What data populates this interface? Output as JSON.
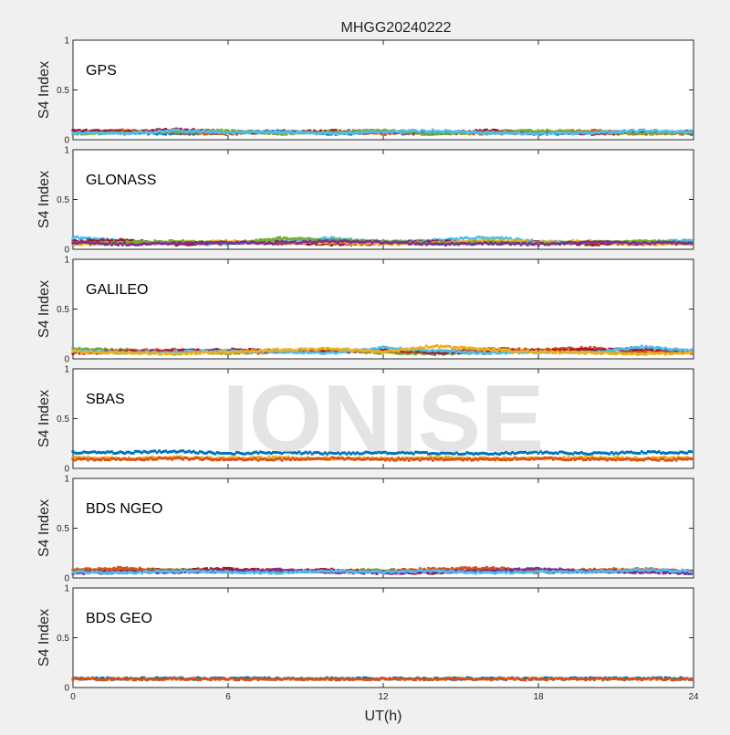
{
  "figure": {
    "title": "MHGG20240222",
    "xlabel": "UT(h)",
    "ylabel": "S4 Index",
    "watermark": "IONISE",
    "background": "#f0f0f0"
  },
  "chart_data": {
    "type": "scatter",
    "title": "MHGG20240222",
    "xlabel": "UT(h)",
    "ylabel": "S4 Index",
    "xlim": [
      0,
      24
    ],
    "xticks": [
      "0",
      "6",
      "12",
      "18",
      "24"
    ],
    "ylim": [
      0,
      1
    ],
    "yticks": [
      "0",
      "0.5",
      "1"
    ],
    "grid": false,
    "series_colors": [
      "#0072bd",
      "#d95319",
      "#edb120",
      "#7e2f8e",
      "#77ac30",
      "#4dbeee",
      "#a2142f"
    ],
    "panels": [
      {
        "label": "GPS",
        "series": [
          {
            "color": "#0072bd",
            "x": [
              0,
              2,
              4,
              6,
              8,
              10,
              12,
              14,
              16,
              18,
              20,
              22,
              24
            ],
            "values": [
              0.08,
              0.07,
              0.06,
              0.07,
              0.09,
              0.06,
              0.07,
              0.06,
              0.08,
              0.06,
              0.07,
              0.08,
              0.06
            ]
          },
          {
            "color": "#d95319",
            "x": [
              0,
              2,
              4,
              6,
              8,
              10,
              12,
              14,
              16,
              18,
              20,
              22,
              24
            ],
            "values": [
              0.07,
              0.09,
              0.07,
              0.06,
              0.08,
              0.07,
              0.06,
              0.08,
              0.06,
              0.07,
              0.09,
              0.06,
              0.07
            ]
          },
          {
            "color": "#a2142f",
            "x": [
              0,
              2,
              4,
              6,
              8,
              10,
              12,
              14,
              16,
              18,
              20,
              22,
              24
            ],
            "values": [
              0.09,
              0.08,
              0.1,
              0.08,
              0.07,
              0.09,
              0.08,
              0.07,
              0.09,
              0.08,
              0.06,
              0.07,
              0.08
            ]
          },
          {
            "color": "#77ac30",
            "x": [
              0,
              2,
              4,
              6,
              8,
              10,
              12,
              14,
              16,
              18,
              20,
              22,
              24
            ],
            "values": [
              0.06,
              0.07,
              0.08,
              0.09,
              0.06,
              0.08,
              0.09,
              0.06,
              0.07,
              0.09,
              0.08,
              0.06,
              0.07
            ]
          },
          {
            "color": "#4dbeee",
            "x": [
              0,
              2,
              4,
              6,
              8,
              10,
              12,
              14,
              16,
              18,
              20,
              22,
              24
            ],
            "values": [
              0.07,
              0.06,
              0.09,
              0.07,
              0.08,
              0.06,
              0.08,
              0.09,
              0.07,
              0.06,
              0.07,
              0.09,
              0.08
            ]
          }
        ]
      },
      {
        "label": "GLONASS",
        "series": [
          {
            "color": "#4dbeee",
            "x": [
              0,
              2,
              4,
              6,
              8,
              10,
              12,
              14,
              16,
              18,
              20,
              22,
              24
            ],
            "values": [
              0.12,
              0.08,
              0.06,
              0.05,
              0.09,
              0.11,
              0.07,
              0.09,
              0.12,
              0.08,
              0.06,
              0.07,
              0.09
            ]
          },
          {
            "color": "#a2142f",
            "x": [
              0,
              2,
              4,
              6,
              8,
              10,
              12,
              14,
              16,
              18,
              20,
              22,
              24
            ],
            "values": [
              0.08,
              0.09,
              0.05,
              0.06,
              0.07,
              0.05,
              0.06,
              0.08,
              0.06,
              0.07,
              0.05,
              0.06,
              0.06
            ]
          },
          {
            "color": "#edb120",
            "x": [
              0,
              2,
              4,
              6,
              8,
              10,
              12,
              14,
              16,
              18,
              20,
              22,
              24
            ],
            "values": [
              0.05,
              0.06,
              0.07,
              0.08,
              0.06,
              0.07,
              0.05,
              0.06,
              0.09,
              0.07,
              0.08,
              0.05,
              0.06
            ]
          },
          {
            "color": "#77ac30",
            "x": [
              0,
              2,
              4,
              6,
              8,
              10,
              12,
              14,
              16,
              18,
              20,
              22,
              24
            ],
            "values": [
              0.06,
              0.07,
              0.08,
              0.06,
              0.11,
              0.09,
              0.08,
              0.06,
              0.07,
              0.06,
              0.07,
              0.08,
              0.06
            ]
          },
          {
            "color": "#7e2f8e",
            "x": [
              0,
              2,
              4,
              6,
              8,
              10,
              12,
              14,
              16,
              18,
              20,
              22,
              24
            ],
            "values": [
              0.07,
              0.05,
              0.06,
              0.07,
              0.06,
              0.08,
              0.07,
              0.05,
              0.06,
              0.05,
              0.07,
              0.06,
              0.07
            ]
          }
        ]
      },
      {
        "label": "GALILEO",
        "series": [
          {
            "color": "#77ac30",
            "x": [
              0,
              2,
              4,
              6,
              8,
              10,
              12,
              14,
              16,
              18,
              20,
              22,
              24
            ],
            "values": [
              0.1,
              0.09,
              0.07,
              0.06,
              0.07,
              0.08,
              0.06,
              0.05,
              0.06,
              0.08,
              0.07,
              0.06,
              0.08
            ]
          },
          {
            "color": "#d95319",
            "x": [
              0,
              2,
              4,
              6,
              8,
              10,
              12,
              14,
              16,
              18,
              20,
              22,
              24
            ],
            "values": [
              0.07,
              0.08,
              0.09,
              0.07,
              0.06,
              0.09,
              0.08,
              0.07,
              0.1,
              0.09,
              0.11,
              0.07,
              0.06
            ]
          },
          {
            "color": "#a2142f",
            "x": [
              0,
              2,
              4,
              6,
              8,
              10,
              12,
              14,
              16,
              18,
              20,
              22,
              24
            ],
            "values": [
              0.06,
              0.07,
              0.08,
              0.09,
              0.08,
              0.07,
              0.09,
              0.06,
              0.07,
              0.08,
              0.09,
              0.1,
              0.07
            ]
          },
          {
            "color": "#4dbeee",
            "x": [
              0,
              2,
              4,
              6,
              8,
              10,
              12,
              14,
              16,
              18,
              20,
              22,
              24
            ],
            "values": [
              0.08,
              0.06,
              0.07,
              0.08,
              0.07,
              0.06,
              0.11,
              0.08,
              0.06,
              0.07,
              0.06,
              0.12,
              0.08
            ]
          },
          {
            "color": "#edb120",
            "x": [
              0,
              2,
              4,
              6,
              8,
              10,
              12,
              14,
              16,
              18,
              20,
              22,
              24
            ],
            "values": [
              0.07,
              0.06,
              0.05,
              0.07,
              0.09,
              0.1,
              0.07,
              0.13,
              0.09,
              0.07,
              0.06,
              0.05,
              0.06
            ]
          }
        ]
      },
      {
        "label": "SBAS",
        "series": [
          {
            "color": "#0072bd",
            "x": [
              0,
              2,
              4,
              6,
              8,
              10,
              12,
              14,
              16,
              18,
              20,
              22,
              24
            ],
            "values": [
              0.16,
              0.16,
              0.17,
              0.15,
              0.16,
              0.15,
              0.16,
              0.15,
              0.15,
              0.16,
              0.15,
              0.16,
              0.16
            ]
          },
          {
            "color": "#edb120",
            "x": [
              0,
              2,
              4,
              6,
              8,
              10,
              12,
              14,
              16,
              18,
              20,
              22,
              24
            ],
            "values": [
              0.11,
              0.1,
              0.11,
              0.1,
              0.11,
              0.1,
              0.1,
              0.11,
              0.1,
              0.1,
              0.11,
              0.1,
              0.11
            ]
          },
          {
            "color": "#d95319",
            "x": [
              0,
              2,
              4,
              6,
              8,
              10,
              12,
              14,
              16,
              18,
              20,
              22,
              24
            ],
            "values": [
              0.09,
              0.09,
              0.1,
              0.09,
              0.09,
              0.1,
              0.09,
              0.09,
              0.09,
              0.1,
              0.09,
              0.09,
              0.09
            ]
          }
        ]
      },
      {
        "label": "BDS NGEO",
        "series": [
          {
            "color": "#77ac30",
            "x": [
              0,
              2,
              4,
              6,
              8,
              10,
              12,
              14,
              16,
              18,
              20,
              22,
              24
            ],
            "values": [
              0.07,
              0.09,
              0.08,
              0.07,
              0.06,
              0.07,
              0.08,
              0.06,
              0.07,
              0.08,
              0.06,
              0.07,
              0.06
            ]
          },
          {
            "color": "#a2142f",
            "x": [
              0,
              2,
              4,
              6,
              8,
              10,
              12,
              14,
              16,
              18,
              20,
              22,
              24
            ],
            "values": [
              0.06,
              0.07,
              0.08,
              0.09,
              0.07,
              0.08,
              0.06,
              0.05,
              0.08,
              0.06,
              0.07,
              0.06,
              0.07
            ]
          },
          {
            "color": "#d95319",
            "x": [
              0,
              2,
              4,
              6,
              8,
              10,
              12,
              14,
              16,
              18,
              20,
              22,
              24
            ],
            "values": [
              0.08,
              0.1,
              0.07,
              0.06,
              0.08,
              0.06,
              0.07,
              0.09,
              0.1,
              0.07,
              0.08,
              0.09,
              0.06
            ]
          },
          {
            "color": "#7e2f8e",
            "x": [
              0,
              2,
              4,
              6,
              8,
              10,
              12,
              14,
              16,
              18,
              20,
              22,
              24
            ],
            "values": [
              0.05,
              0.06,
              0.06,
              0.07,
              0.08,
              0.06,
              0.05,
              0.06,
              0.07,
              0.09,
              0.07,
              0.06,
              0.05
            ]
          },
          {
            "color": "#4dbeee",
            "x": [
              0,
              2,
              4,
              6,
              8,
              10,
              12,
              14,
              16,
              18,
              20,
              22,
              24
            ],
            "values": [
              0.06,
              0.05,
              0.07,
              0.06,
              0.05,
              0.07,
              0.06,
              0.07,
              0.05,
              0.06,
              0.06,
              0.08,
              0.07
            ]
          }
        ]
      },
      {
        "label": "BDS GEO",
        "series": [
          {
            "color": "#0072bd",
            "x": [
              0,
              2,
              4,
              6,
              8,
              10,
              12,
              14,
              16,
              18,
              20,
              22,
              24
            ],
            "values": [
              0.09,
              0.09,
              0.09,
              0.09,
              0.09,
              0.09,
              0.09,
              0.09,
              0.09,
              0.09,
              0.09,
              0.09,
              0.09
            ]
          },
          {
            "color": "#d95319",
            "x": [
              0,
              2,
              4,
              6,
              8,
              10,
              12,
              14,
              16,
              18,
              20,
              22,
              24
            ],
            "values": [
              0.085,
              0.085,
              0.085,
              0.085,
              0.085,
              0.085,
              0.085,
              0.085,
              0.085,
              0.085,
              0.085,
              0.085,
              0.085
            ]
          }
        ]
      }
    ]
  }
}
